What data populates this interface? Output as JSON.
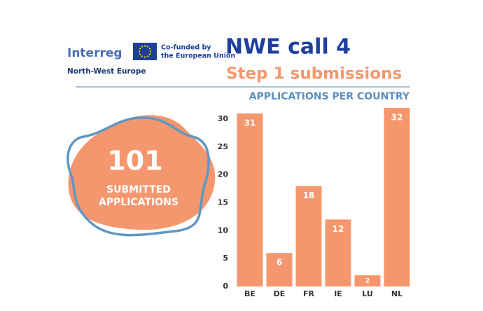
{
  "header": {
    "logo": "Interreg",
    "cofunded_line1": "Co-funded by",
    "cofunded_line2": "the European Union",
    "region": "North-West Europe",
    "title": "NWE call 4",
    "subtitle": "Step 1 submissions"
  },
  "stat": {
    "number": "101",
    "label_line1": "SUBMITTED",
    "label_line2": "APPLICATIONS"
  },
  "chart_data": {
    "type": "bar",
    "title": "APPLICATIONS PER COUNTRY",
    "categories": [
      "BE",
      "DE",
      "FR",
      "IE",
      "LU",
      "NL"
    ],
    "values": [
      31,
      6,
      18,
      12,
      2,
      32
    ],
    "color": "#f5976e",
    "ylim": [
      0,
      32
    ],
    "yticks": [
      0,
      5,
      10,
      15,
      20,
      25,
      30
    ],
    "grid": false
  }
}
